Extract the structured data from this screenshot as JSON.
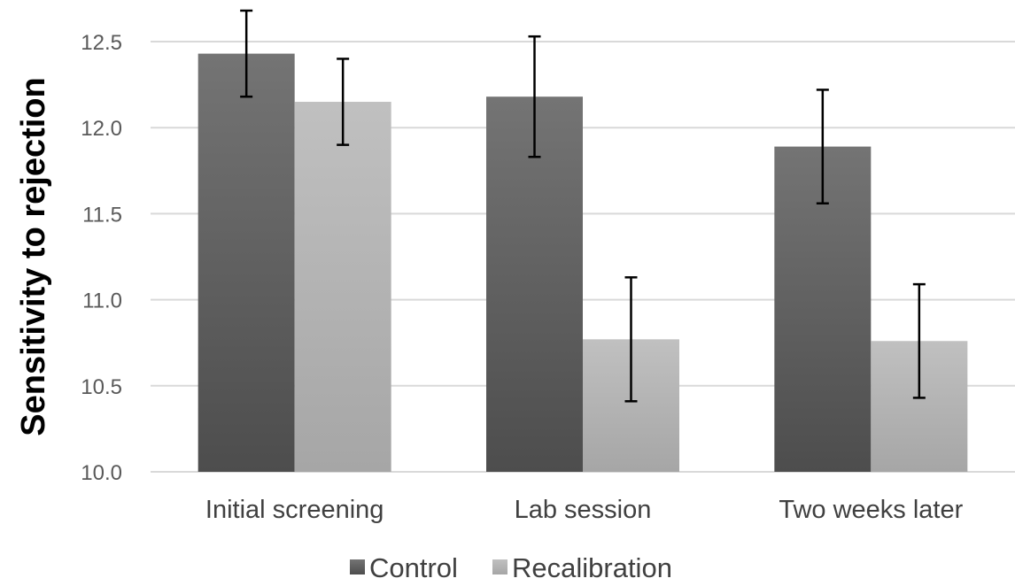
{
  "chart_data": {
    "type": "bar",
    "title": "",
    "xlabel": "",
    "ylabel": "Sensitivity to rejection",
    "categories": [
      "Initial screening",
      "Lab session",
      "Two weeks later"
    ],
    "series": [
      {
        "name": "Control",
        "values": [
          12.43,
          12.18,
          11.89
        ],
        "error": [
          0.25,
          0.35,
          0.33
        ],
        "color_top": "#747474",
        "color_bottom": "#4d4d4d"
      },
      {
        "name": "Recalibration",
        "values": [
          12.15,
          10.77,
          10.76
        ],
        "error": [
          0.25,
          0.36,
          0.33
        ],
        "color_top": "#c0c0c0",
        "color_bottom": "#a6a6a6"
      }
    ],
    "ylim": [
      10.0,
      12.5
    ],
    "yticks": [
      "10.0",
      "10.5",
      "11.0",
      "11.5",
      "12.0",
      "12.5"
    ],
    "grid": true,
    "legend_position": "bottom"
  }
}
